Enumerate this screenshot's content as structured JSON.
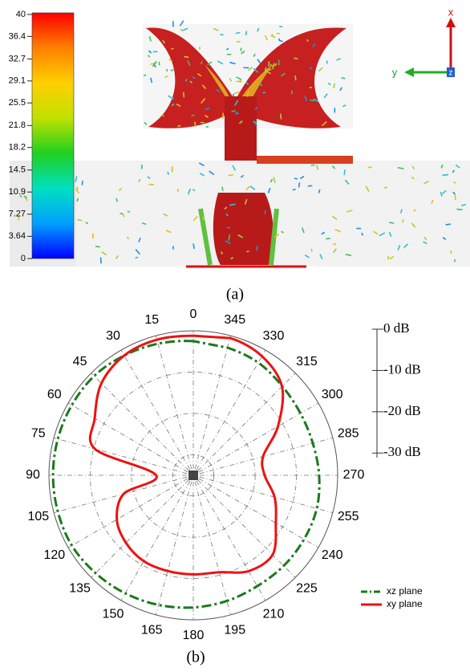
{
  "chart_data": [
    {
      "type": "colorbar",
      "clim": [
        0,
        40
      ],
      "ticks": [
        40,
        36.4,
        32.7,
        29.1,
        25.5,
        21.8,
        18.2,
        14.5,
        10.9,
        7.27,
        3.64,
        0
      ],
      "colors": [
        "#0000ff",
        "#00a0ff",
        "#00e0c0",
        "#20d020",
        "#c0e000",
        "#ffd000",
        "#ff8000",
        "#ff0000"
      ],
      "axis_labels": [
        "x",
        "y",
        "z"
      ],
      "caption": "(a)"
    },
    {
      "type": "polar",
      "theta_ticks": [
        0,
        15,
        30,
        45,
        60,
        75,
        90,
        105,
        120,
        135,
        150,
        165,
        180,
        195,
        210,
        225,
        240,
        255,
        270,
        285,
        300,
        315,
        330,
        345
      ],
      "rlim": [
        -35,
        0
      ],
      "rticks": [
        {
          "value": 0,
          "label": "0 dB"
        },
        {
          "value": -10,
          "label": "-10 dB"
        },
        {
          "value": -20,
          "label": "-20 dB"
        },
        {
          "value": -30,
          "label": "-30 dB"
        }
      ],
      "series": [
        {
          "name": "xz plane",
          "color": "#1a7a1a",
          "dash": true,
          "values": [
            -2.5,
            -2,
            -1.5,
            -1,
            -1,
            -1,
            -1,
            -1,
            -1,
            -1.5,
            -2,
            -2.5,
            -3,
            -3.5,
            -4,
            -4,
            -4,
            -4,
            -4.5,
            -5,
            -5,
            -4.5,
            -3.5,
            -3
          ]
        },
        {
          "name": "xy plane",
          "color": "#ee1111",
          "dash": false,
          "values": [
            -1.2,
            -1,
            -1.5,
            -3.5,
            -7.4,
            -10.3,
            -26,
            -17.5,
            -13.6,
            -11.9,
            -11,
            -11,
            -11,
            -10.7,
            -8.2,
            -7.8,
            -11.9,
            -14.6,
            -17.7,
            -17.5,
            -11.3,
            -4.6,
            -1.7,
            -0.6
          ]
        }
      ],
      "caption": "(b)"
    }
  ]
}
